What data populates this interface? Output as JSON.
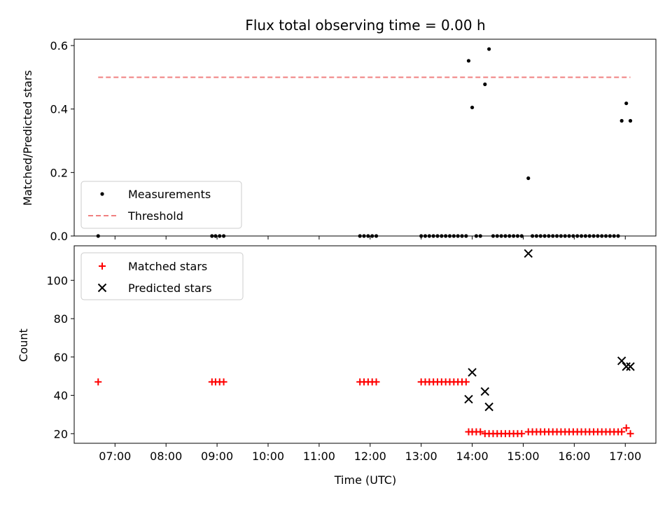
{
  "chart_data": [
    {
      "type": "scatter",
      "title": "Flux total observing time = 0.00 h",
      "xlabel": "",
      "ylabel": "Matched/Predicted stars",
      "xlim": [
        6.2,
        17.6
      ],
      "ylim": [
        0,
        0.62
      ],
      "yticks": [
        0,
        0.2,
        0.4,
        0.6
      ],
      "ytick_labels": [
        "0.0",
        "0.2",
        "0.4",
        "0.6"
      ],
      "legend_position": "lower-left",
      "series": [
        {
          "name": "Measurements",
          "kind": "scatter",
          "marker": "dot",
          "color": "#000000",
          "points": [
            [
              6.67,
              0
            ],
            [
              8.9,
              0
            ],
            [
              8.97,
              0
            ],
            [
              9.05,
              0
            ],
            [
              9.13,
              0
            ],
            [
              11.8,
              0
            ],
            [
              11.88,
              0
            ],
            [
              11.96,
              0
            ],
            [
              12.04,
              0
            ],
            [
              12.12,
              0
            ],
            [
              13.0,
              0
            ],
            [
              13.08,
              0
            ],
            [
              13.16,
              0
            ],
            [
              13.24,
              0
            ],
            [
              13.32,
              0
            ],
            [
              13.4,
              0
            ],
            [
              13.48,
              0
            ],
            [
              13.56,
              0
            ],
            [
              13.64,
              0
            ],
            [
              13.72,
              0
            ],
            [
              13.8,
              0
            ],
            [
              13.88,
              0
            ],
            [
              13.93,
              0.552
            ],
            [
              14.0,
              0.405
            ],
            [
              14.08,
              0
            ],
            [
              14.16,
              0
            ],
            [
              14.25,
              0.478
            ],
            [
              14.33,
              0.589
            ],
            [
              14.41,
              0
            ],
            [
              14.49,
              0
            ],
            [
              14.57,
              0
            ],
            [
              14.65,
              0
            ],
            [
              14.73,
              0
            ],
            [
              14.81,
              0
            ],
            [
              14.89,
              0
            ],
            [
              14.97,
              0
            ],
            [
              15.1,
              0.182
            ],
            [
              15.18,
              0
            ],
            [
              15.26,
              0
            ],
            [
              15.34,
              0
            ],
            [
              15.42,
              0
            ],
            [
              15.5,
              0
            ],
            [
              15.58,
              0
            ],
            [
              15.66,
              0
            ],
            [
              15.74,
              0
            ],
            [
              15.82,
              0
            ],
            [
              15.9,
              0
            ],
            [
              15.98,
              0
            ],
            [
              16.06,
              0
            ],
            [
              16.14,
              0
            ],
            [
              16.22,
              0
            ],
            [
              16.3,
              0
            ],
            [
              16.38,
              0
            ],
            [
              16.46,
              0
            ],
            [
              16.54,
              0
            ],
            [
              16.62,
              0
            ],
            [
              16.7,
              0
            ],
            [
              16.78,
              0
            ],
            [
              16.86,
              0
            ],
            [
              16.93,
              0.363
            ],
            [
              17.02,
              0.418
            ],
            [
              17.1,
              0.363
            ]
          ]
        },
        {
          "name": "Threshold",
          "kind": "line",
          "style": "dashed",
          "color": "#f08080",
          "x": [
            6.67,
            17.1
          ],
          "y": [
            0.5,
            0.5
          ]
        }
      ]
    },
    {
      "type": "scatter",
      "title": "",
      "xlabel": "Time (UTC)",
      "ylabel": "Count",
      "xlim": [
        6.2,
        17.6
      ],
      "ylim": [
        15,
        118
      ],
      "xticks": [
        7,
        8,
        9,
        10,
        11,
        12,
        13,
        14,
        15,
        16,
        17
      ],
      "xtick_labels": [
        "07:00",
        "08:00",
        "09:00",
        "10:00",
        "11:00",
        "12:00",
        "13:00",
        "14:00",
        "15:00",
        "16:00",
        "17:00"
      ],
      "yticks": [
        20,
        40,
        60,
        80,
        100
      ],
      "ytick_labels": [
        "20",
        "40",
        "60",
        "80",
        "100"
      ],
      "legend_position": "upper-left",
      "series": [
        {
          "name": "Matched stars",
          "kind": "scatter",
          "marker": "plus",
          "color": "#ff0000",
          "points": [
            [
              6.67,
              47
            ],
            [
              8.9,
              47
            ],
            [
              8.97,
              47
            ],
            [
              9.05,
              47
            ],
            [
              9.13,
              47
            ],
            [
              11.8,
              47
            ],
            [
              11.88,
              47
            ],
            [
              11.96,
              47
            ],
            [
              12.04,
              47
            ],
            [
              12.12,
              47
            ],
            [
              13.0,
              47
            ],
            [
              13.08,
              47
            ],
            [
              13.16,
              47
            ],
            [
              13.24,
              47
            ],
            [
              13.32,
              47
            ],
            [
              13.4,
              47
            ],
            [
              13.48,
              47
            ],
            [
              13.56,
              47
            ],
            [
              13.64,
              47
            ],
            [
              13.72,
              47
            ],
            [
              13.8,
              47
            ],
            [
              13.88,
              47
            ],
            [
              13.93,
              21
            ],
            [
              14.0,
              21
            ],
            [
              14.08,
              21
            ],
            [
              14.16,
              21
            ],
            [
              14.25,
              20
            ],
            [
              14.33,
              20
            ],
            [
              14.41,
              20
            ],
            [
              14.49,
              20
            ],
            [
              14.57,
              20
            ],
            [
              14.65,
              20
            ],
            [
              14.73,
              20
            ],
            [
              14.81,
              20
            ],
            [
              14.89,
              20
            ],
            [
              14.97,
              20
            ],
            [
              15.1,
              21
            ],
            [
              15.18,
              21
            ],
            [
              15.26,
              21
            ],
            [
              15.34,
              21
            ],
            [
              15.42,
              21
            ],
            [
              15.5,
              21
            ],
            [
              15.58,
              21
            ],
            [
              15.66,
              21
            ],
            [
              15.74,
              21
            ],
            [
              15.82,
              21
            ],
            [
              15.9,
              21
            ],
            [
              15.98,
              21
            ],
            [
              16.06,
              21
            ],
            [
              16.14,
              21
            ],
            [
              16.22,
              21
            ],
            [
              16.3,
              21
            ],
            [
              16.38,
              21
            ],
            [
              16.46,
              21
            ],
            [
              16.54,
              21
            ],
            [
              16.62,
              21
            ],
            [
              16.7,
              21
            ],
            [
              16.78,
              21
            ],
            [
              16.86,
              21
            ],
            [
              16.93,
              21
            ],
            [
              17.02,
              23
            ],
            [
              17.1,
              20
            ]
          ]
        },
        {
          "name": "Predicted stars",
          "kind": "scatter",
          "marker": "x",
          "color": "#000000",
          "points": [
            [
              13.93,
              38
            ],
            [
              14.0,
              52
            ],
            [
              14.25,
              42
            ],
            [
              14.33,
              34
            ],
            [
              15.1,
              114
            ],
            [
              16.93,
              58
            ],
            [
              17.02,
              55
            ],
            [
              17.1,
              55
            ]
          ]
        }
      ]
    }
  ]
}
